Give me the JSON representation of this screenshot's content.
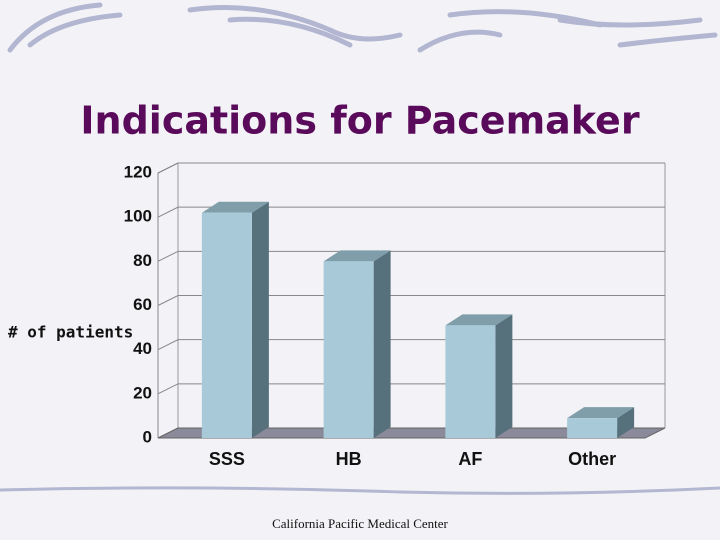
{
  "chart_data": {
    "type": "bar3d",
    "title": "Indications for Pacemaker",
    "categories": [
      "SSS",
      "HB",
      "AF",
      "Other"
    ],
    "values": [
      102,
      80,
      51,
      9
    ],
    "color": "#a8cad8",
    "ylabel": "# of patients",
    "ylim": [
      0,
      120
    ],
    "yticks": [
      0,
      20,
      40,
      60,
      80,
      100,
      120
    ],
    "grid": true
  },
  "footer": "California Pacific Medical Center"
}
